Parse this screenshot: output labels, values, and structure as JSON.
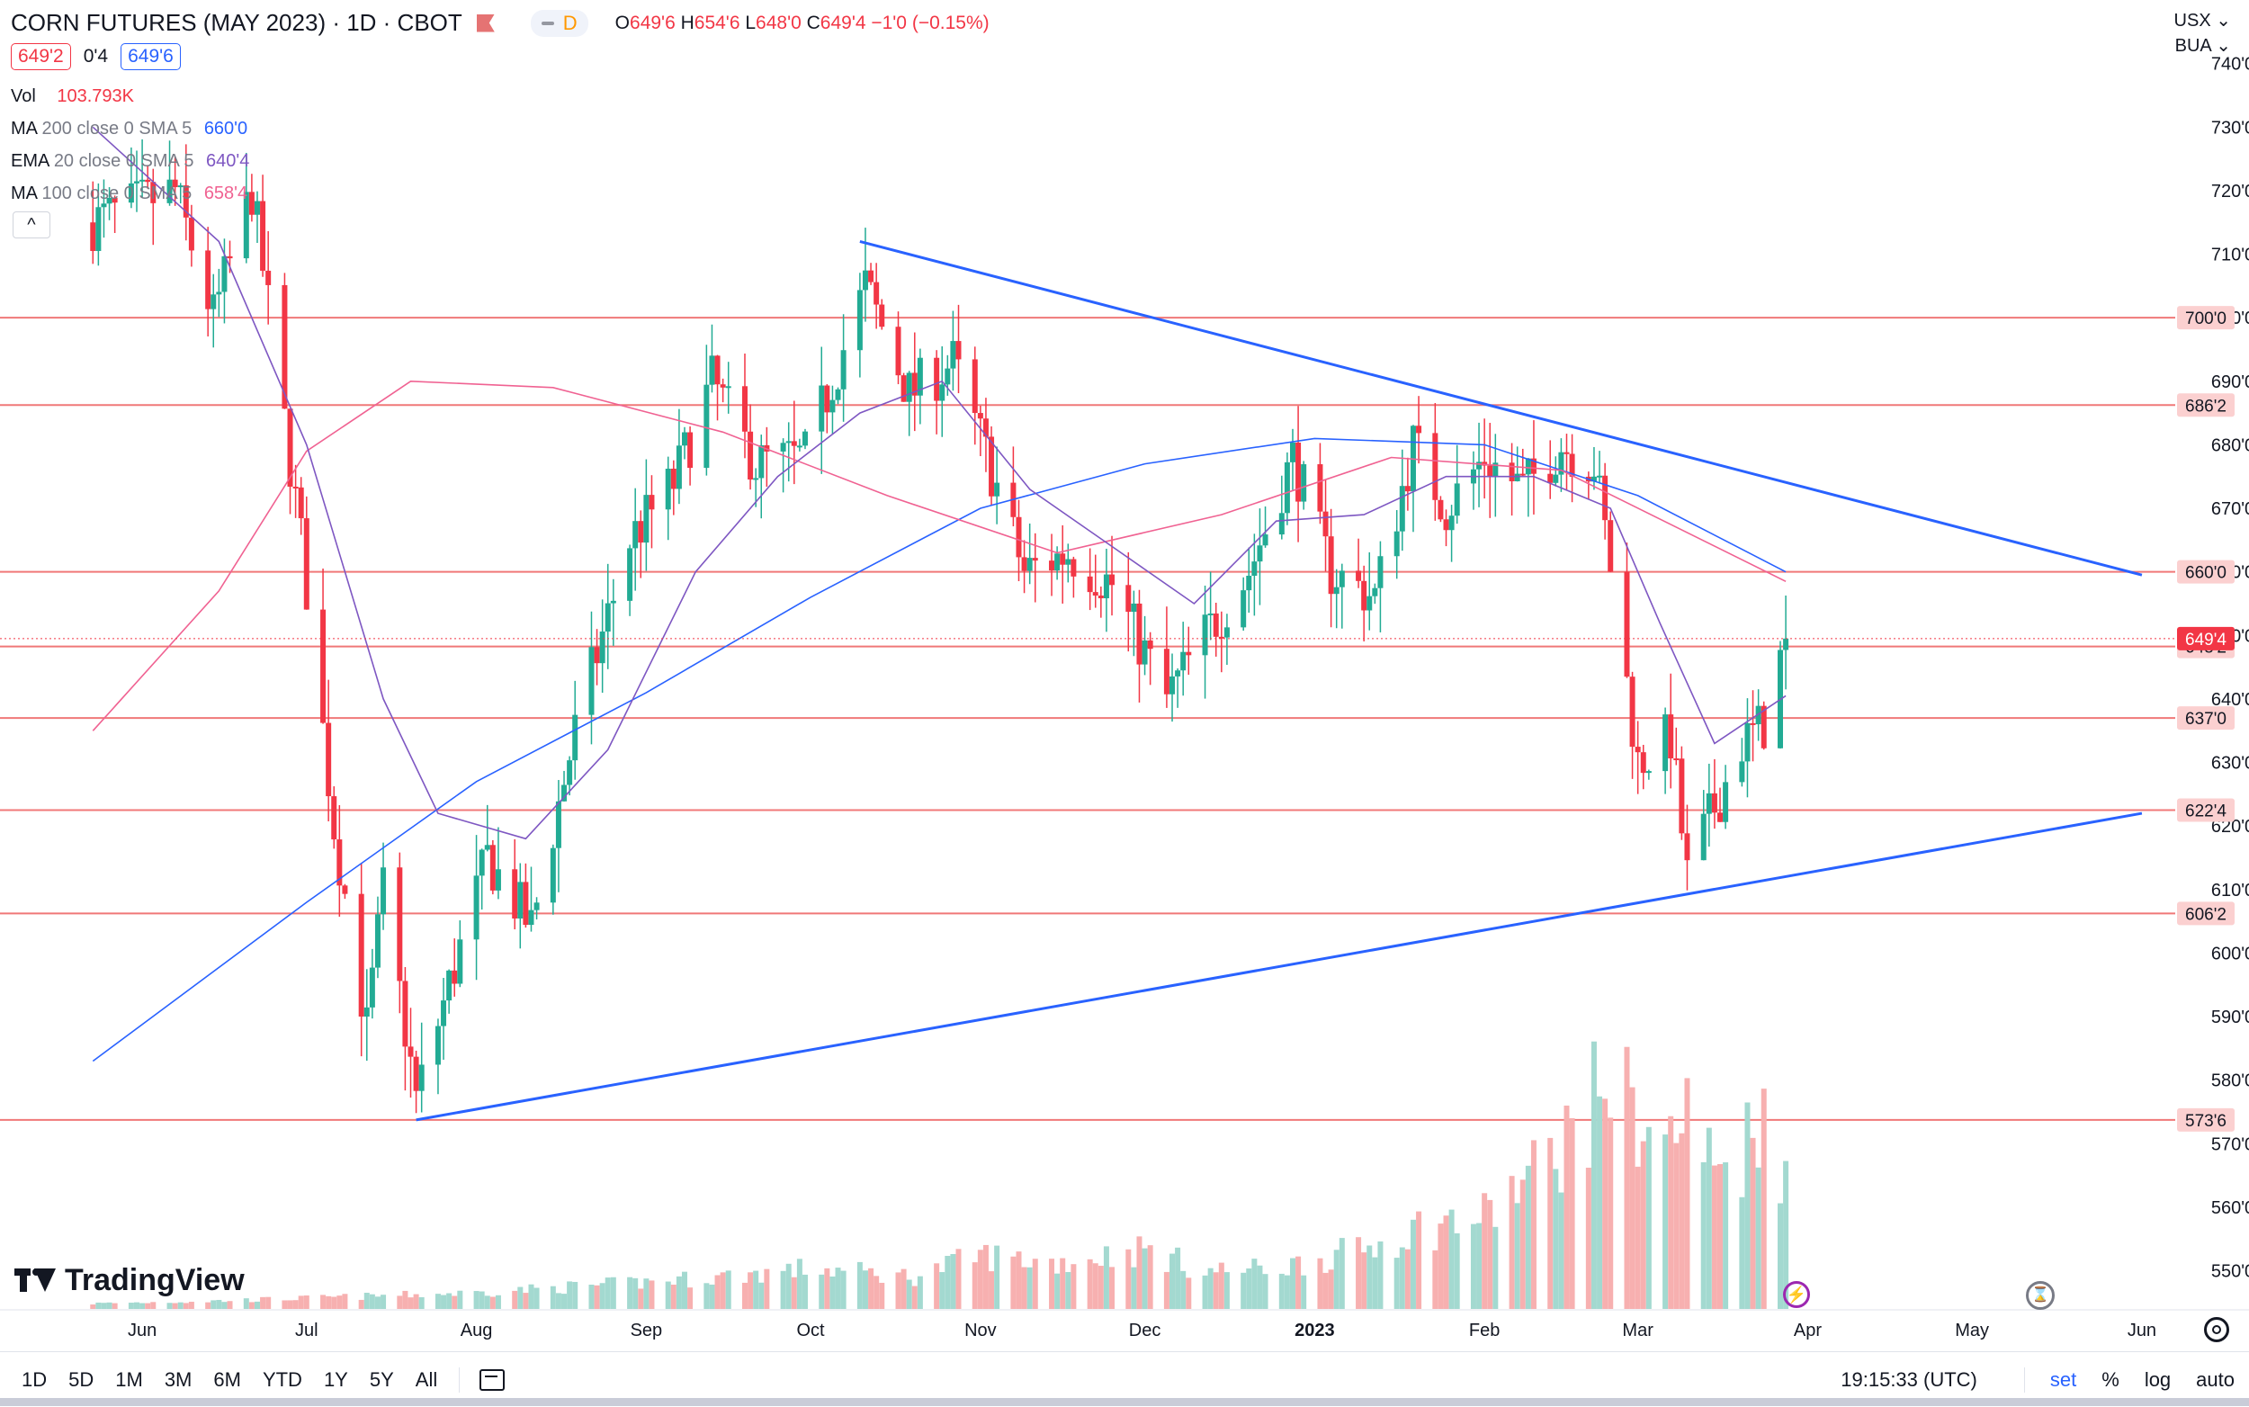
{
  "header": {
    "symbol": "CORN FUTURES (MAY 2023) · 1D · CBOT",
    "pill_letter": "D",
    "o_label": "O",
    "o_val": "649'6",
    "h_label": "H",
    "h_val": "654'6",
    "l_label": "L",
    "l_val": "648'0",
    "c_label": "C",
    "c_val": "649'4",
    "change": "−1'0 (−0.15%)"
  },
  "quote": {
    "bid": "649'2",
    "spread": "0'4",
    "ask": "649'6"
  },
  "indicators": [
    {
      "name": "Vol",
      "params": "",
      "value": "103.793K",
      "color": "#f23645"
    },
    {
      "name": "MA",
      "params": "200 close 0 SMA 5",
      "value": "660'0",
      "color": "#2962ff"
    },
    {
      "name": "EMA",
      "params": "20 close 0 SMA 5",
      "value": "640'4",
      "color": "#7e57c2"
    },
    {
      "name": "MA",
      "params": "100 close 0 SMA 5",
      "value": "658'4",
      "color": "#f06292"
    }
  ],
  "collapse_symbol": "^",
  "top_right": {
    "currency": "USX",
    "unit": "BUA"
  },
  "logo": "TradingView",
  "toolbar": {
    "timeframes": [
      "1D",
      "5D",
      "1M",
      "3M",
      "6M",
      "YTD",
      "1Y",
      "5Y",
      "All"
    ],
    "time": "19:15:33 (UTC)",
    "set": "set",
    "percent": "%",
    "log": "log",
    "auto": "auto"
  },
  "chart_data": {
    "type": "candlestick",
    "title": "CORN FUTURES (MAY 2023) · 1D · CBOT",
    "ylim": [
      544,
      750
    ],
    "y_ticks": [
      "550'0",
      "560'0",
      "570'0",
      "580'0",
      "590'0",
      "600'0",
      "610'0",
      "620'0",
      "630'0",
      "640'0",
      "650'0",
      "660'0",
      "670'0",
      "680'0",
      "690'0",
      "700'0",
      "710'0",
      "720'0",
      "730'0",
      "740'0"
    ],
    "x_labels": [
      "Jun",
      "Jul",
      "Aug",
      "Sep",
      "Oct",
      "Nov",
      "Dec",
      "2023",
      "Feb",
      "Mar",
      "Apr",
      "May",
      "Jun"
    ],
    "horizontal_levels": [
      {
        "value": 700,
        "label": "700'0"
      },
      {
        "value": 686.25,
        "label": "686'2"
      },
      {
        "value": 660,
        "label": "660'0"
      },
      {
        "value": 648.25,
        "label": "648'2"
      },
      {
        "value": 637,
        "label": "637'0"
      },
      {
        "value": 622.5,
        "label": "622'4"
      },
      {
        "value": 606.25,
        "label": "606'2"
      },
      {
        "value": 573.75,
        "label": "573'6"
      }
    ],
    "last_price": {
      "value": 649.5,
      "label": "649'4"
    },
    "trendlines": [
      {
        "from": [
          "2022-10-10",
          712
        ],
        "to": [
          "2023-06-01",
          659.5
        ]
      },
      {
        "from": [
          "2022-07-21",
          573.75
        ],
        "to": [
          "2023-06-01",
          622
        ]
      }
    ],
    "anchors": [
      [
        "2022-05-23",
        715
      ],
      [
        "2022-06-07",
        720
      ],
      [
        "2022-06-14",
        700
      ],
      [
        "2022-06-21",
        720
      ],
      [
        "2022-06-30",
        665
      ],
      [
        "2022-07-06",
        620
      ],
      [
        "2022-07-12",
        588
      ],
      [
        "2022-07-15",
        610
      ],
      [
        "2022-07-21",
        577
      ],
      [
        "2022-07-27",
        595
      ],
      [
        "2022-08-03",
        615
      ],
      [
        "2022-08-11",
        604
      ],
      [
        "2022-08-19",
        635
      ],
      [
        "2022-08-29",
        665
      ],
      [
        "2022-09-06",
        674
      ],
      [
        "2022-09-13",
        690
      ],
      [
        "2022-09-21",
        677
      ],
      [
        "2022-09-30",
        678
      ],
      [
        "2022-10-11",
        705
      ],
      [
        "2022-10-19",
        688
      ],
      [
        "2022-10-27",
        693
      ],
      [
        "2022-11-03",
        676
      ],
      [
        "2022-11-09",
        660
      ],
      [
        "2022-11-17",
        663
      ],
      [
        "2022-11-25",
        658
      ],
      [
        "2022-12-05",
        640
      ],
      [
        "2022-12-12",
        650
      ],
      [
        "2022-12-20",
        660
      ],
      [
        "2022-12-28",
        678
      ],
      [
        "2023-01-04",
        660
      ],
      [
        "2023-01-12",
        656
      ],
      [
        "2023-01-19",
        680
      ],
      [
        "2023-01-25",
        670
      ],
      [
        "2023-02-01",
        678
      ],
      [
        "2023-02-08",
        673
      ],
      [
        "2023-02-15",
        680
      ],
      [
        "2023-02-21",
        677
      ],
      [
        "2023-02-24",
        661
      ],
      [
        "2023-03-01",
        630
      ],
      [
        "2023-03-07",
        634
      ],
      [
        "2023-03-10",
        612
      ],
      [
        "2023-03-14",
        621
      ],
      [
        "2023-03-20",
        633
      ],
      [
        "2023-03-24",
        636
      ],
      [
        "2023-03-28",
        649.5
      ]
    ],
    "ma200": [
      [
        "2022-05-23",
        583
      ],
      [
        "2022-07-01",
        608
      ],
      [
        "2022-08-01",
        627
      ],
      [
        "2022-09-01",
        641
      ],
      [
        "2022-10-01",
        656
      ],
      [
        "2022-11-01",
        670
      ],
      [
        "2022-12-01",
        677
      ],
      [
        "2023-01-01",
        681
      ],
      [
        "2023-02-01",
        680
      ],
      [
        "2023-03-01",
        672
      ],
      [
        "2023-03-28",
        660
      ]
    ],
    "ma100": [
      [
        "2022-05-23",
        635
      ],
      [
        "2022-06-15",
        657
      ],
      [
        "2022-07-01",
        679
      ],
      [
        "2022-07-20",
        690
      ],
      [
        "2022-08-15",
        689
      ],
      [
        "2022-09-15",
        682
      ],
      [
        "2022-10-15",
        672
      ],
      [
        "2022-11-15",
        663
      ],
      [
        "2022-12-15",
        669
      ],
      [
        "2023-01-15",
        678
      ],
      [
        "2023-02-15",
        676
      ],
      [
        "2023-03-28",
        658.5
      ]
    ],
    "ema20": [
      [
        "2022-05-23",
        730
      ],
      [
        "2022-06-15",
        712
      ],
      [
        "2022-07-01",
        680
      ],
      [
        "2022-07-15",
        640
      ],
      [
        "2022-07-25",
        622
      ],
      [
        "2022-08-10",
        618
      ],
      [
        "2022-08-25",
        632
      ],
      [
        "2022-09-10",
        660
      ],
      [
        "2022-09-25",
        675
      ],
      [
        "2022-10-10",
        685
      ],
      [
        "2022-10-25",
        690
      ],
      [
        "2022-11-10",
        673
      ],
      [
        "2022-11-25",
        664
      ],
      [
        "2022-12-10",
        655
      ],
      [
        "2022-12-25",
        668
      ],
      [
        "2023-01-10",
        669
      ],
      [
        "2023-01-25",
        675
      ],
      [
        "2023-02-10",
        675
      ],
      [
        "2023-02-24",
        670
      ],
      [
        "2023-03-05",
        652
      ],
      [
        "2023-03-15",
        633
      ],
      [
        "2023-03-28",
        640.5
      ]
    ],
    "volume": [
      [
        "2022-05-23",
        2
      ],
      [
        "2022-06-15",
        3
      ],
      [
        "2022-07-01",
        4
      ],
      [
        "2022-08-01",
        6
      ],
      [
        "2022-08-25",
        9
      ],
      [
        "2022-09-15",
        12
      ],
      [
        "2022-10-01",
        15
      ],
      [
        "2022-10-20",
        12
      ],
      [
        "2022-11-01",
        20
      ],
      [
        "2022-11-15",
        17
      ],
      [
        "2022-12-01",
        22
      ],
      [
        "2022-12-12",
        14
      ],
      [
        "2022-12-25",
        15
      ],
      [
        "2023-01-10",
        22
      ],
      [
        "2023-01-20",
        30
      ],
      [
        "2023-02-01",
        34
      ],
      [
        "2023-02-10",
        50
      ],
      [
        "2023-02-20",
        72
      ],
      [
        "2023-02-23",
        88
      ],
      [
        "2023-02-28",
        74
      ],
      [
        "2023-03-06",
        60
      ],
      [
        "2023-03-10",
        72
      ],
      [
        "2023-03-15",
        52
      ],
      [
        "2023-03-20",
        58
      ],
      [
        "2023-03-24",
        78
      ],
      [
        "2023-03-28",
        46
      ]
    ]
  },
  "colors": {
    "up": "#22ab94",
    "down": "#f23645",
    "ma200": "#2962ff",
    "ema20": "#7e57c2",
    "ma100": "#f06292",
    "level": "#f07878",
    "trend": "#2962ff"
  }
}
